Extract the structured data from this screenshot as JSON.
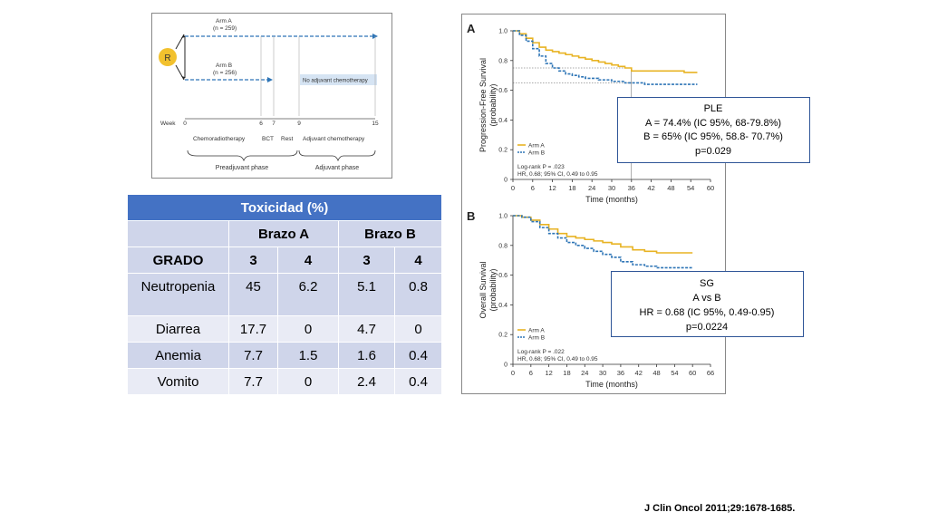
{
  "schema": {
    "randomization_label": "R",
    "arm_a": {
      "name": "Arm A",
      "n": "(n = 259)"
    },
    "arm_b": {
      "name": "Arm B",
      "n": "(n = 256)"
    },
    "no_adjuvant_label": "No adjuvant chemotherapy",
    "week_label": "Week",
    "weeks": [
      {
        "label": "0",
        "week": 0
      },
      {
        "label": "6",
        "week": 6
      },
      {
        "label": "7",
        "week": 7
      },
      {
        "label": "9",
        "week": 9
      },
      {
        "label": "15",
        "week": 15
      }
    ],
    "phases": [
      "Chemoradiotherapy",
      "BCT",
      "Rest",
      "Adjuvant chemotherapy"
    ],
    "preadjuvant_label": "Preadjuvant phase",
    "adjuvant_label": "Adjuvant phase"
  },
  "table": {
    "title": "Toxicidad (%)",
    "arm_a": "Brazo A",
    "arm_b": "Brazo B",
    "grade_label": "GRADO",
    "grades": [
      "3",
      "4",
      "3",
      "4"
    ],
    "rows": [
      {
        "label": "Neutropenia",
        "values": [
          "45",
          "6.2",
          "5.1",
          "0.8"
        ]
      },
      {
        "label": "Diarrea",
        "values": [
          "17.7",
          "0",
          "4.7",
          "0"
        ]
      },
      {
        "label": "Anemia",
        "values": [
          "7.7",
          "1.5",
          "1.6",
          "0.4"
        ]
      },
      {
        "label": "Vomito",
        "values": [
          "7.7",
          "0",
          "2.4",
          "0.4"
        ]
      }
    ]
  },
  "chart_data": [
    {
      "type": "line",
      "panel": "A",
      "ylabel": "Progression-Free Survival (probability)",
      "xlabel": "Time (months)",
      "xticks": [
        0,
        6,
        12,
        18,
        24,
        30,
        36,
        42,
        48,
        54,
        60
      ],
      "yticks": [
        0,
        0.2,
        0.4,
        0.6,
        0.8,
        1.0
      ],
      "xlim": [
        0,
        60
      ],
      "ylim": [
        0,
        1.0
      ],
      "legend": [
        "Arm A",
        "Arm B"
      ],
      "annotation": "Log-rank P = .023",
      "annotation2": "HR, 0.68; 95% CI, 0.49 to 0.95",
      "series": [
        {
          "name": "Arm A",
          "color": "#e8b323",
          "dash": false,
          "x": [
            0,
            2,
            4,
            6,
            8,
            10,
            12,
            14,
            16,
            18,
            20,
            22,
            24,
            26,
            28,
            30,
            32,
            34,
            36,
            40,
            46,
            52,
            56
          ],
          "y": [
            1.0,
            0.98,
            0.95,
            0.92,
            0.89,
            0.87,
            0.86,
            0.85,
            0.84,
            0.83,
            0.82,
            0.81,
            0.8,
            0.79,
            0.78,
            0.77,
            0.76,
            0.75,
            0.73,
            0.73,
            0.73,
            0.72,
            0.72
          ]
        },
        {
          "name": "Arm B",
          "color": "#2e75b6",
          "dash": true,
          "x": [
            0,
            2,
            4,
            6,
            8,
            10,
            12,
            14,
            16,
            18,
            20,
            22,
            24,
            26,
            28,
            30,
            32,
            34,
            36,
            40,
            46,
            52,
            56
          ],
          "y": [
            1.0,
            0.97,
            0.93,
            0.88,
            0.83,
            0.78,
            0.75,
            0.73,
            0.71,
            0.7,
            0.69,
            0.68,
            0.68,
            0.67,
            0.67,
            0.66,
            0.66,
            0.65,
            0.65,
            0.64,
            0.64,
            0.64,
            0.64
          ]
        }
      ],
      "reference": {
        "x": 36,
        "y": [
          0.75,
          0.65
        ]
      }
    },
    {
      "type": "line",
      "panel": "B",
      "ylabel": "Overall Survival (probability)",
      "xlabel": "Time (months)",
      "xticks": [
        0,
        6,
        12,
        18,
        24,
        30,
        36,
        42,
        48,
        54,
        60,
        66
      ],
      "yticks": [
        0,
        0.2,
        0.4,
        0.6,
        0.8,
        1.0
      ],
      "xlim": [
        0,
        66
      ],
      "ylim": [
        0,
        1.0
      ],
      "legend": [
        "Arm A",
        "Arm B"
      ],
      "annotation": "Log-rank P = .022",
      "annotation2": "HR, 0.68; 95% CI, 0.49 to 0.95",
      "series": [
        {
          "name": "Arm A",
          "color": "#e8b323",
          "dash": false,
          "x": [
            0,
            3,
            6,
            9,
            12,
            15,
            18,
            21,
            24,
            27,
            30,
            33,
            36,
            40,
            44,
            48,
            54,
            60
          ],
          "y": [
            1.0,
            0.99,
            0.97,
            0.94,
            0.91,
            0.88,
            0.86,
            0.85,
            0.84,
            0.83,
            0.82,
            0.81,
            0.79,
            0.77,
            0.76,
            0.75,
            0.75,
            0.75
          ]
        },
        {
          "name": "Arm B",
          "color": "#2e75b6",
          "dash": true,
          "x": [
            0,
            3,
            6,
            9,
            12,
            15,
            18,
            21,
            24,
            27,
            30,
            33,
            36,
            40,
            44,
            48,
            54,
            60
          ],
          "y": [
            1.0,
            0.99,
            0.96,
            0.92,
            0.88,
            0.85,
            0.82,
            0.8,
            0.78,
            0.76,
            0.74,
            0.72,
            0.69,
            0.67,
            0.66,
            0.65,
            0.65,
            0.65
          ]
        }
      ]
    }
  ],
  "boxes": {
    "ple": {
      "title": "PLE",
      "line1": "A = 74.4% (IC 95%, 68-79.8%)",
      "line2": "B = 65% (IC 95%, 58.8- 70.7%)",
      "line3": "p=0.029"
    },
    "sg": {
      "title": "SG",
      "line1": "A vs B",
      "line2": "HR = 0.68 (IC 95%, 0.49-0.95)",
      "line3": "p=0.0224"
    }
  },
  "citation": "J Clin Oncol 2011;29:1678-1685."
}
